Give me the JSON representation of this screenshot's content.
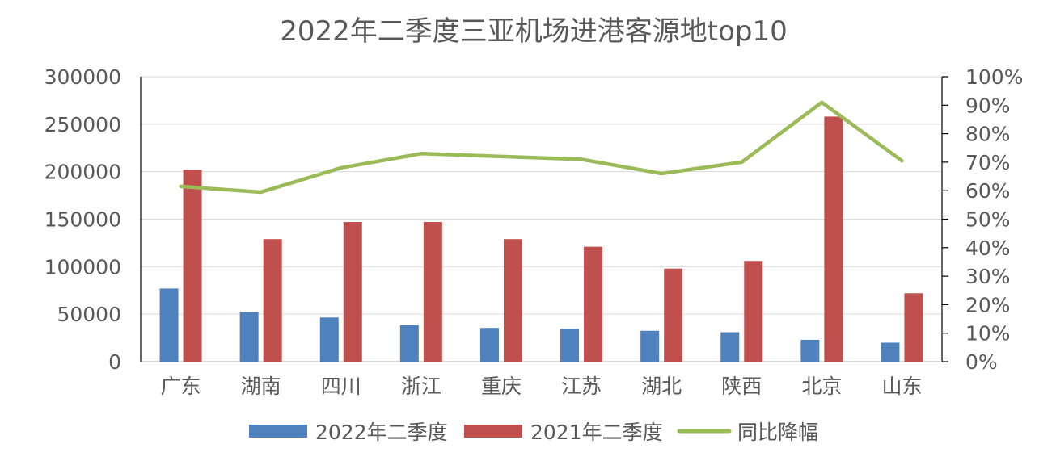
{
  "chart_data": {
    "type": "bar",
    "title": "2022年二季度三亚机场进港客源地top10",
    "categories": [
      "广东",
      "湖南",
      "四川",
      "浙江",
      "重庆",
      "江苏",
      "湖北",
      "陕西",
      "北京",
      "山东"
    ],
    "series": [
      {
        "name": "2022年二季度",
        "type": "bar",
        "axis": "left",
        "color": "#4F81BD",
        "values": [
          77000,
          52000,
          46500,
          38500,
          35500,
          34500,
          32500,
          31000,
          23000,
          20000
        ]
      },
      {
        "name": "2021年二季度",
        "type": "bar",
        "axis": "left",
        "color": "#C0504D",
        "values": [
          202000,
          129000,
          147000,
          147000,
          129000,
          121000,
          98000,
          106000,
          258000,
          72000
        ]
      },
      {
        "name": "同比降幅",
        "type": "line",
        "axis": "right",
        "color": "#9BBB59",
        "values": [
          0.615,
          0.595,
          0.68,
          0.73,
          0.72,
          0.71,
          0.66,
          0.7,
          0.91,
          0.705
        ]
      }
    ],
    "y_left": {
      "min": 0,
      "max": 300000,
      "ticks": [
        "0",
        "50000",
        "100000",
        "150000",
        "200000",
        "250000",
        "300000"
      ]
    },
    "y_right": {
      "min": 0,
      "max": 1,
      "ticks": [
        "0%",
        "10%",
        "20%",
        "30%",
        "40%",
        "50%",
        "60%",
        "70%",
        "80%",
        "90%",
        "100%"
      ]
    },
    "grid": true,
    "legend_position": "bottom"
  }
}
